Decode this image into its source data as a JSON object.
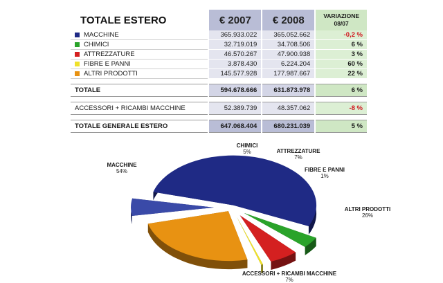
{
  "table": {
    "title": "TOTALE ESTERO",
    "col_2007": "€ 2007",
    "col_2008": "€ 2008",
    "col_var_1": "VARIAZIONE",
    "col_var_2": "08/07",
    "rows": [
      {
        "label": "MACCHINE",
        "color": "#1f2a85",
        "v2007": "365.933.022",
        "v2008": "365.052.662",
        "var": "-0,2 %",
        "neg": true
      },
      {
        "label": "CHIMICI",
        "color": "#2aa32a",
        "v2007": "32.719.019",
        "v2008": "34.708.506",
        "var": "6 %",
        "neg": false
      },
      {
        "label": "ATTREZZATURE",
        "color": "#d42020",
        "v2007": "46.570.267",
        "v2008": "47.900.938",
        "var": "3 %",
        "neg": false
      },
      {
        "label": "FIBRE E PANNI",
        "color": "#efe12a",
        "v2007": "3.878.430",
        "v2008": "6.224.204",
        "var": "60 %",
        "neg": false
      },
      {
        "label": "ALTRI PRODOTTI",
        "color": "#e89212",
        "v2007": "145.577.928",
        "v2008": "177.987.667",
        "var": "22 %",
        "neg": false
      }
    ],
    "total": {
      "label": "TOTALE",
      "v2007": "594.678.666",
      "v2008": "631.873.978",
      "var": "6 %"
    },
    "accessori": {
      "label": "ACCESSORI + RICAMBI MACCHINE",
      "v2007": "52.389.739",
      "v2008": "48.357.062",
      "var": "-8 %"
    },
    "grand_total": {
      "label": "TOTALE GENERALE ESTERO",
      "v2007": "647.068.404",
      "v2008": "680.231.039",
      "var": "5 %"
    }
  },
  "chart_data": {
    "type": "pie",
    "slices": [
      {
        "label": "MACCHINE",
        "value": 54,
        "display": "54%",
        "color": "#1f2a85"
      },
      {
        "label": "CHIMICI",
        "value": 5,
        "display": "5%",
        "color": "#2aa32a"
      },
      {
        "label": "ATTREZZATURE",
        "value": 7,
        "display": "7%",
        "color": "#d42020"
      },
      {
        "label": "FIBRE E PANNI",
        "value": 1,
        "display": "1%",
        "color": "#efe12a"
      },
      {
        "label": "ALTRI PRODOTTI",
        "value": 26,
        "display": "26%",
        "color": "#e89212"
      },
      {
        "label": "ACCESSORI + RICAMBI MACCHINE",
        "value": 7,
        "display": "7%",
        "color": "#3a4aa8"
      }
    ]
  }
}
